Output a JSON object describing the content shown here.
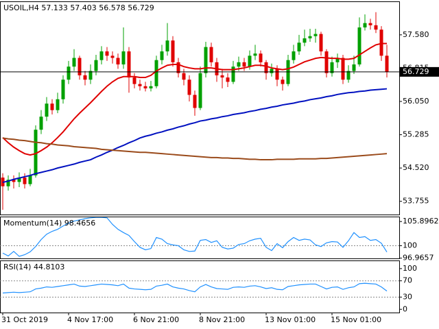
{
  "chart_data": [
    {
      "type": "candlestick",
      "title": "USOIL,H4  57.133 57.403 56.578 56.729",
      "categories": [
        "31 Oct 2019",
        null,
        null,
        null,
        null,
        null,
        null,
        null,
        null,
        null,
        null,
        null,
        "4 Nov 17:00",
        null,
        null,
        null,
        null,
        null,
        null,
        null,
        null,
        null,
        null,
        null,
        "6 Nov 21:00",
        null,
        null,
        null,
        null,
        null,
        null,
        null,
        null,
        null,
        null,
        null,
        "8 Nov 21:00",
        null,
        null,
        null,
        null,
        null,
        null,
        null,
        null,
        null,
        null,
        null,
        "13 Nov 01:00",
        null,
        null,
        null,
        null,
        null,
        null,
        null,
        null,
        null,
        null,
        null,
        "15 Nov 01:00",
        null,
        null,
        null,
        null,
        null,
        null,
        null,
        null,
        null,
        null
      ],
      "open": [
        54.3,
        54.1,
        54.25,
        54.2,
        54.3,
        54.15,
        54.35,
        55.4,
        55.7,
        56.0,
        55.85,
        56.1,
        56.55,
        56.85,
        57.05,
        56.65,
        56.55,
        56.75,
        57.0,
        57.2,
        57.1,
        57.05,
        56.9,
        57.2,
        56.6,
        56.45,
        56.4,
        56.35,
        56.4,
        57.0,
        57.2,
        57.45,
        56.95,
        56.7,
        56.55,
        56.2,
        55.9,
        56.7,
        57.3,
        56.95,
        56.65,
        56.6,
        56.5,
        56.85,
        56.95,
        56.85,
        57.1,
        57.15,
        56.95,
        56.7,
        56.8,
        56.55,
        56.45,
        57.0,
        57.2,
        57.4,
        57.5,
        57.55,
        57.6,
        57.2,
        56.7,
        56.95,
        57.05,
        56.55,
        56.75,
        56.9,
        57.75,
        57.85,
        57.8,
        57.7,
        57.1
      ],
      "high": [
        54.4,
        54.35,
        54.35,
        54.42,
        54.4,
        54.5,
        55.5,
        55.85,
        56.15,
        56.1,
        56.25,
        56.65,
        56.98,
        57.25,
        57.1,
        56.75,
        56.9,
        57.12,
        57.32,
        57.3,
        57.2,
        57.15,
        57.75,
        57.3,
        56.7,
        56.55,
        56.5,
        56.52,
        57.1,
        57.35,
        57.85,
        57.55,
        57.05,
        56.8,
        56.65,
        56.3,
        56.85,
        57.42,
        57.4,
        57.05,
        56.8,
        56.7,
        56.98,
        57.08,
        57.05,
        57.22,
        57.35,
        57.22,
        57.0,
        56.92,
        56.88,
        56.62,
        57.12,
        57.35,
        57.58,
        57.7,
        57.72,
        57.72,
        57.65,
        57.25,
        57.08,
        57.15,
        57.12,
        56.88,
        57.1,
        57.98,
        58.05,
        57.95,
        58.1,
        57.78,
        57.35
      ],
      "low": [
        53.56,
        54.0,
        54.05,
        54.08,
        54.05,
        54.1,
        54.3,
        55.3,
        55.6,
        55.75,
        55.78,
        56.0,
        56.45,
        56.75,
        56.55,
        56.42,
        56.45,
        56.65,
        56.9,
        56.98,
        56.92,
        56.8,
        56.8,
        56.25,
        56.35,
        56.3,
        56.28,
        56.28,
        56.35,
        56.9,
        57.1,
        56.85,
        56.6,
        56.42,
        56.05,
        55.72,
        55.85,
        56.6,
        56.85,
        56.5,
        56.35,
        56.38,
        56.45,
        56.75,
        56.75,
        56.78,
        57.0,
        56.85,
        56.55,
        56.62,
        56.4,
        56.3,
        56.4,
        56.92,
        57.12,
        57.32,
        57.42,
        57.4,
        57.1,
        56.6,
        56.62,
        56.82,
        56.45,
        56.48,
        56.68,
        56.85,
        57.68,
        57.7,
        57.62,
        56.98,
        56.6
      ],
      "close": [
        54.1,
        54.25,
        54.2,
        54.3,
        54.15,
        54.35,
        55.4,
        55.7,
        56.0,
        55.85,
        56.1,
        56.55,
        56.85,
        57.05,
        56.65,
        56.55,
        56.75,
        57.0,
        57.2,
        57.1,
        57.05,
        56.9,
        57.2,
        56.6,
        56.45,
        56.4,
        56.35,
        56.4,
        57.0,
        57.2,
        57.45,
        56.95,
        56.7,
        56.55,
        56.2,
        55.9,
        56.7,
        57.3,
        56.95,
        56.65,
        56.6,
        56.5,
        56.85,
        56.95,
        56.85,
        57.1,
        57.15,
        56.95,
        56.7,
        56.8,
        56.55,
        56.45,
        57.0,
        57.2,
        57.4,
        57.5,
        57.55,
        57.6,
        57.2,
        56.7,
        56.95,
        57.05,
        56.55,
        56.75,
        56.9,
        57.75,
        57.85,
        57.8,
        57.7,
        57.1,
        56.729
      ],
      "up_color": "#00a000",
      "down_color": "#e00000",
      "series": [
        {
          "color": "#e00000",
          "values": [
            55.22,
            55.1,
            55.0,
            54.92,
            54.85,
            54.82,
            54.85,
            54.92,
            55.0,
            55.1,
            55.22,
            55.35,
            55.5,
            55.65,
            55.78,
            55.9,
            56.02,
            56.15,
            56.28,
            56.4,
            56.5,
            56.58,
            56.62,
            56.62,
            56.62,
            56.6,
            56.6,
            56.65,
            56.75,
            56.82,
            56.88,
            56.9,
            56.9,
            56.85,
            56.82,
            56.8,
            56.8,
            56.82,
            56.82,
            56.8,
            56.78,
            56.78,
            56.78,
            56.8,
            56.82,
            56.85,
            56.88,
            56.88,
            56.86,
            56.82,
            56.8,
            56.78,
            56.8,
            56.84,
            56.9,
            56.96,
            57.0,
            57.04,
            57.06,
            57.05,
            57.04,
            57.04,
            57.02,
            57.02,
            57.04,
            57.12,
            57.2,
            57.28,
            57.35,
            57.38,
            57.38
          ]
        },
        {
          "color": "#0010c0",
          "values": [
            54.19,
            54.22,
            54.26,
            54.29,
            54.32,
            54.35,
            54.39,
            54.42,
            54.45,
            54.48,
            54.52,
            54.55,
            54.58,
            54.61,
            54.65,
            54.68,
            54.71,
            54.77,
            54.82,
            54.88,
            54.93,
            54.99,
            55.04,
            55.1,
            55.15,
            55.21,
            55.25,
            55.28,
            55.32,
            55.35,
            55.39,
            55.42,
            55.46,
            55.49,
            55.53,
            55.56,
            55.6,
            55.62,
            55.65,
            55.67,
            55.7,
            55.72,
            55.75,
            55.77,
            55.79,
            55.82,
            55.84,
            55.87,
            55.89,
            55.92,
            55.94,
            55.97,
            55.99,
            56.01,
            56.04,
            56.06,
            56.09,
            56.11,
            56.13,
            56.16,
            56.18,
            56.21,
            56.23,
            56.25,
            56.26,
            56.28,
            56.29,
            56.31,
            56.32,
            56.33,
            56.34
          ]
        },
        {
          "color": "#9a4a1a",
          "values": [
            55.21,
            55.19,
            55.18,
            55.16,
            55.15,
            55.13,
            55.11,
            55.1,
            55.08,
            55.07,
            55.05,
            55.04,
            55.03,
            55.01,
            55.0,
            54.99,
            54.98,
            54.97,
            54.95,
            54.94,
            54.93,
            54.92,
            54.91,
            54.9,
            54.89,
            54.88,
            54.88,
            54.87,
            54.86,
            54.85,
            54.84,
            54.83,
            54.82,
            54.81,
            54.8,
            54.79,
            54.78,
            54.77,
            54.76,
            54.76,
            54.75,
            54.75,
            54.74,
            54.74,
            54.73,
            54.72,
            54.72,
            54.71,
            54.71,
            54.71,
            54.72,
            54.72,
            54.72,
            54.72,
            54.73,
            54.73,
            54.73,
            54.73,
            54.74,
            54.74,
            54.75,
            54.76,
            54.77,
            54.78,
            54.79,
            54.8,
            54.81,
            54.82,
            54.83,
            54.84,
            54.85
          ]
        }
      ],
      "ylim": [
        53.451,
        58.349
      ],
      "yticks": [
        {
          "value": 57.58,
          "label": "57.580"
        },
        56.815,
        {
          "value": 56.05,
          "label": "56.050"
        },
        55.285,
        {
          "value": 54.52,
          "label": "54.520"
        },
        53.755
      ],
      "current_price": 56.729
    },
    {
      "type": "line",
      "title": "Momentum(14) 98.4656",
      "series": [
        {
          "color": "#1e90ff",
          "values": [
            98.2,
            97.5,
            98.6,
            97.4,
            97.8,
            98.5,
            99.8,
            101.5,
            102.8,
            103.5,
            104.0,
            104.8,
            105.5,
            106.0,
            106.3,
            106.6,
            106.8,
            106.9,
            106.9,
            106.8,
            105.2,
            104.0,
            103.2,
            102.5,
            101.0,
            99.6,
            99.0,
            99.3,
            102.0,
            101.6,
            100.5,
            100.2,
            100.0,
            99.0,
            98.6,
            98.7,
            101.3,
            101.5,
            100.8,
            101.2,
            99.6,
            99.2,
            99.4,
            100.3,
            100.5,
            101.2,
            101.6,
            101.8,
            99.6,
            98.8,
            100.5,
            99.5,
            101.0,
            102.0,
            101.3,
            101.6,
            101.4,
            100.2,
            99.8,
            100.7,
            101.0,
            100.9,
            99.6,
            101.2,
            103.2,
            102.0,
            102.2,
            101.3,
            101.5,
            100.6,
            98.4656
          ]
        }
      ],
      "ylim": [
        96.9,
        107.1
      ],
      "yticks": [
        105.8962,
        100,
        96.9657
      ],
      "levels": [
        100
      ]
    },
    {
      "type": "line",
      "title": "RSI(14) 44.8103",
      "series": [
        {
          "color": "#1e90ff",
          "values": [
            40,
            41,
            42,
            41,
            42,
            43,
            50,
            52,
            55,
            54,
            56,
            58,
            60,
            62,
            57,
            56,
            58,
            60,
            62,
            61,
            60,
            58,
            62,
            52,
            50,
            49,
            48,
            49,
            57,
            59,
            62,
            55,
            52,
            50,
            46,
            43,
            55,
            61,
            55,
            51,
            50,
            49,
            54,
            55,
            54,
            57,
            58,
            55,
            51,
            53,
            49,
            48,
            56,
            58,
            60,
            61,
            62,
            62,
            56,
            50,
            54,
            55,
            49,
            53,
            55,
            63,
            64,
            63,
            62,
            55,
            44.8103
          ]
        }
      ],
      "ylim": [
        -8,
        120
      ],
      "yticks": [
        100,
        70,
        30,
        0
      ],
      "levels": [
        70,
        30
      ]
    }
  ]
}
